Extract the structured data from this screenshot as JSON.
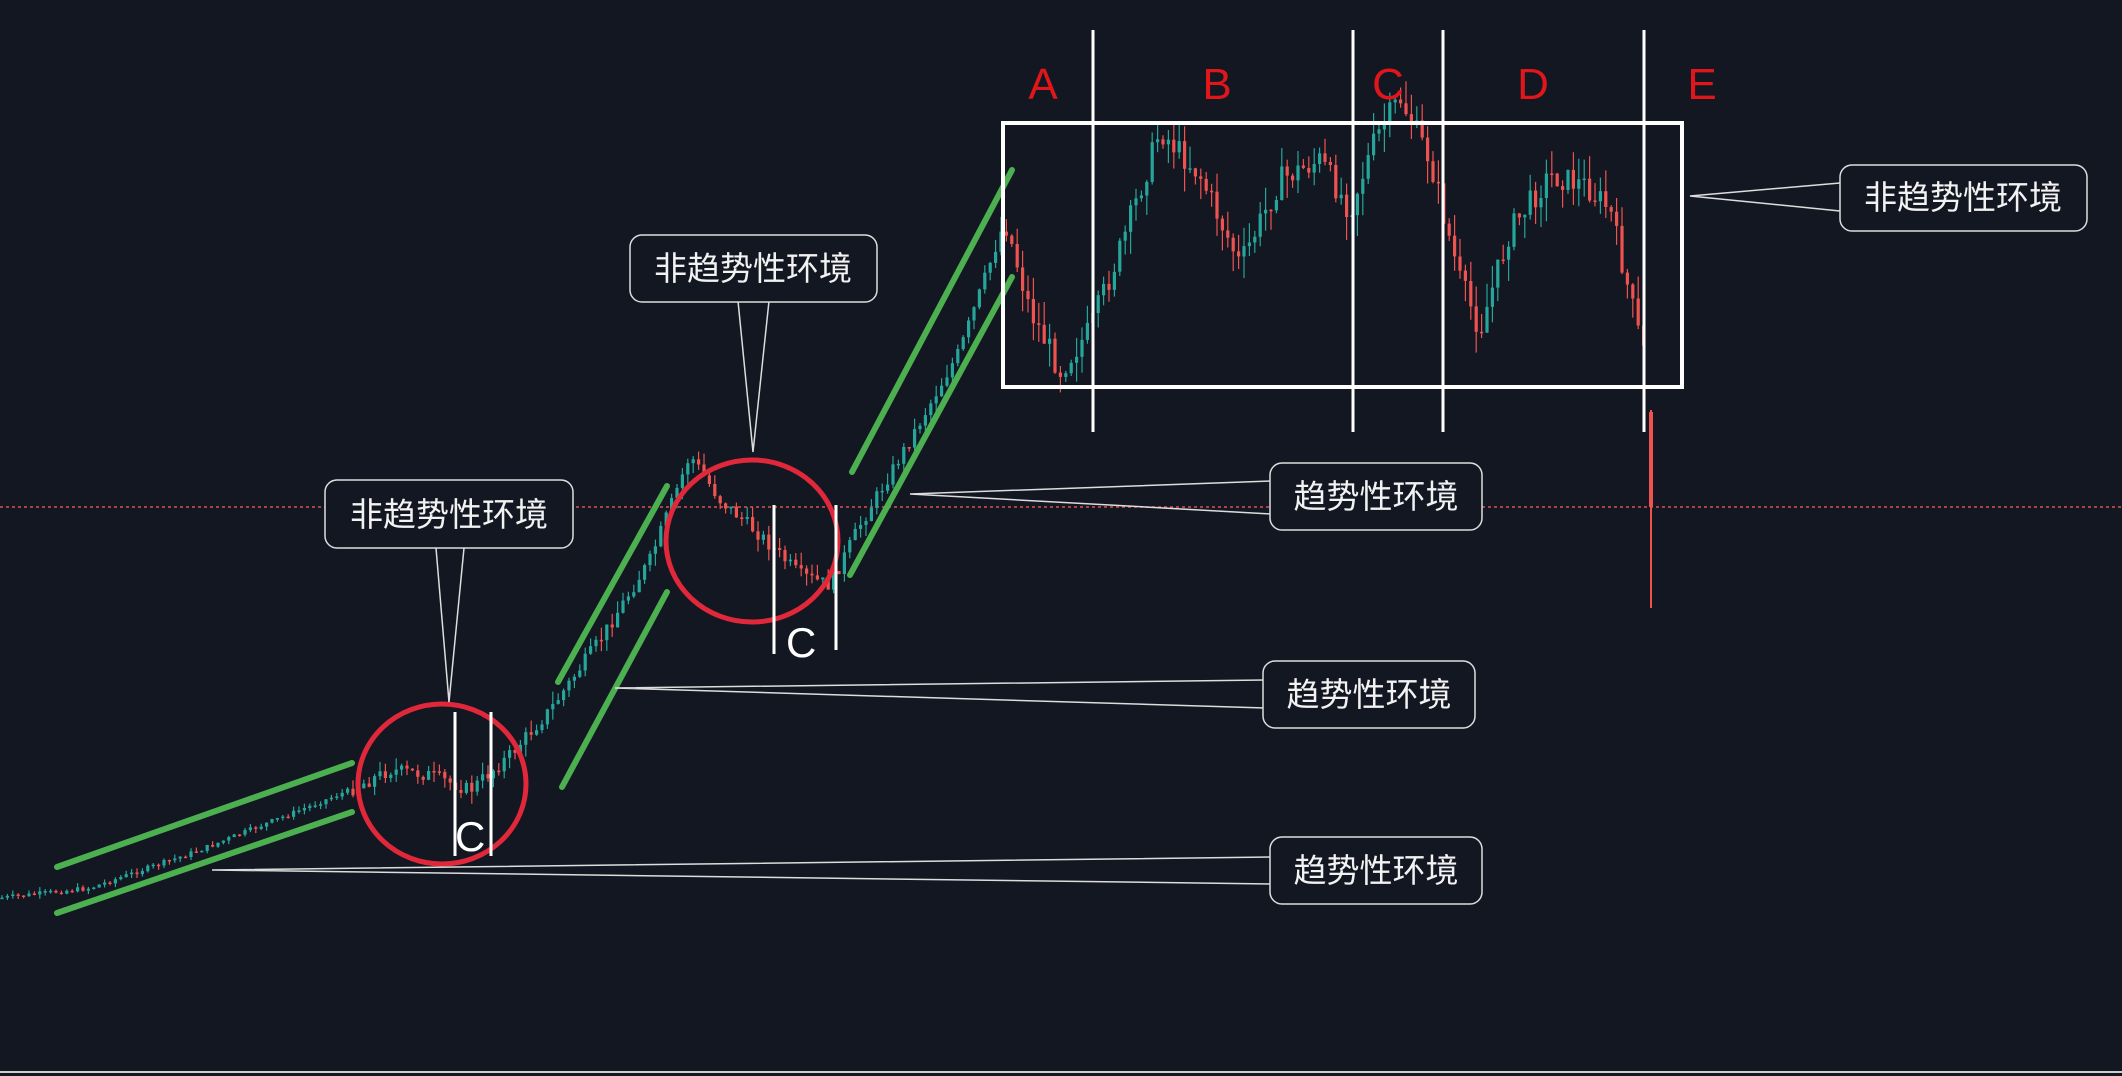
{
  "chart_data": {
    "type": "candlestick",
    "annotations": {
      "trend_label": "趋势性环境",
      "range_label": "非趋势性环境",
      "phase_c": "C",
      "range_sections": [
        "A",
        "B",
        "C",
        "D",
        "E"
      ]
    },
    "colors": {
      "background": "#131722",
      "up_candle": "#26a69a",
      "down_candle": "#ef5350",
      "trend_channel": "#4caf50",
      "circle": "#e0283a",
      "section_letters": "#e0161b",
      "box": "#ffffff",
      "price_line": "#d9534f"
    },
    "grid": false,
    "legend": false
  }
}
